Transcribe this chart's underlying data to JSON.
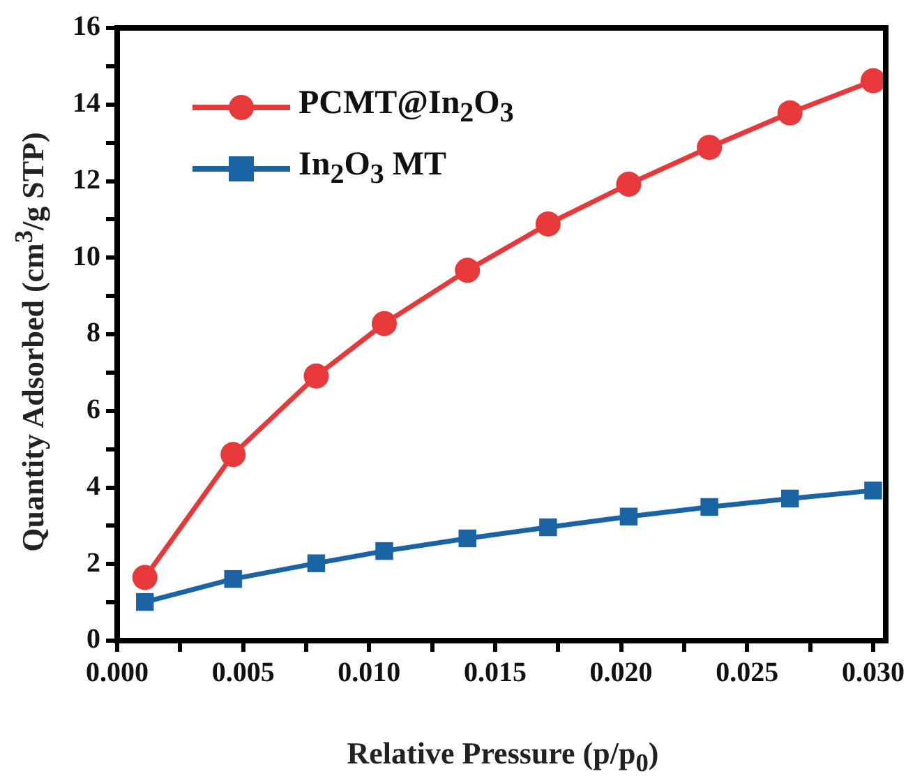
{
  "chart_data": {
    "type": "line",
    "xlabel": "Relative Pressure (p/p$_{0}$)",
    "ylabel": "Quantity Adsorbed (cm$^{3}$/g STP)",
    "x": [
      0.0011,
      0.0046,
      0.0079,
      0.0106,
      0.0139,
      0.0171,
      0.0203,
      0.0235,
      0.0267,
      0.03
    ],
    "series": [
      {
        "name": "PCMT@In$_{2}$O$_{3}$",
        "color": "#e8393a",
        "marker": "circle",
        "values": [
          1.65,
          4.86,
          6.91,
          8.28,
          9.67,
          10.88,
          11.92,
          12.88,
          13.78,
          14.62
        ]
      },
      {
        "name": "In$_{2}$O$_{3}$ MT",
        "color": "#1a64a4",
        "marker": "square",
        "values": [
          1.01,
          1.61,
          2.02,
          2.34,
          2.67,
          2.96,
          3.24,
          3.49,
          3.71,
          3.92
        ]
      }
    ],
    "xlim": [
      0,
      0.0305
    ],
    "xticks": [
      {
        "value": 0,
        "label": "0.000"
      },
      {
        "value": 0.0025,
        "label": null
      },
      {
        "value": 0.005,
        "label": "0.005"
      },
      {
        "value": 0.0075,
        "label": null
      },
      {
        "value": 0.01,
        "label": "0.010"
      },
      {
        "value": 0.0125,
        "label": null
      },
      {
        "value": 0.015,
        "label": "0.015"
      },
      {
        "value": 0.0175,
        "label": null
      },
      {
        "value": 0.02,
        "label": "0.020"
      },
      {
        "value": 0.0225,
        "label": null
      },
      {
        "value": 0.025,
        "label": "0.025"
      },
      {
        "value": 0.0275,
        "label": null
      },
      {
        "value": 0.03,
        "label": "0.030"
      }
    ],
    "ylim": [
      0,
      16
    ],
    "yticks": [
      0,
      {
        "value": 1,
        "label": null
      },
      2,
      {
        "value": 3,
        "label": null
      },
      4,
      {
        "value": 5,
        "label": null
      },
      6,
      {
        "value": 7,
        "label": null
      },
      8,
      {
        "value": 9,
        "label": null
      },
      10,
      {
        "value": 11,
        "label": null
      },
      12,
      {
        "value": 13,
        "label": null
      },
      14,
      {
        "value": 15,
        "label": null
      },
      16
    ],
    "grid": false,
    "legend": "top left",
    "line_style": "solid"
  }
}
